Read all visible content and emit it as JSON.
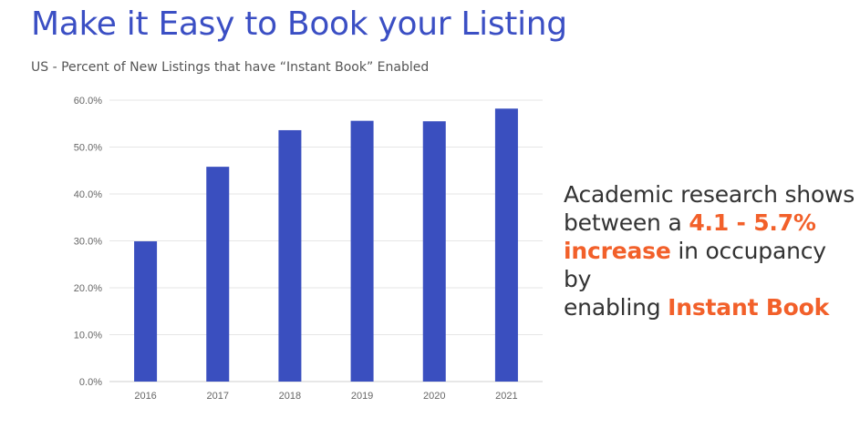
{
  "title": "Make it Easy to Book your Listing",
  "subtitle": "US - Percent of New Listings that have “Instant Book” Enabled",
  "callout": {
    "line1": "Academic research shows",
    "line2_prefix": "between a ",
    "line2_highlight": "4.1 - 5.7%",
    "line3_highlight": "increase",
    "line3_suffix": " in occupancy by",
    "line4_prefix": "enabling ",
    "line4_highlight": "Instant Book"
  },
  "colors": {
    "bar": "#3a4fbf",
    "title": "#3b4fc4",
    "highlight": "#f2602a",
    "grid": "#e6e6e6"
  },
  "chart_data": {
    "type": "bar",
    "categories": [
      "2016",
      "2017",
      "2018",
      "2019",
      "2020",
      "2021"
    ],
    "values": [
      29.9,
      45.8,
      53.6,
      55.6,
      55.5,
      58.2
    ],
    "yticks": [
      "0.0%",
      "10.0%",
      "20.0%",
      "30.0%",
      "40.0%",
      "50.0%",
      "60.0%"
    ],
    "ylim": [
      0,
      60
    ],
    "grid": true,
    "legend": "none"
  }
}
